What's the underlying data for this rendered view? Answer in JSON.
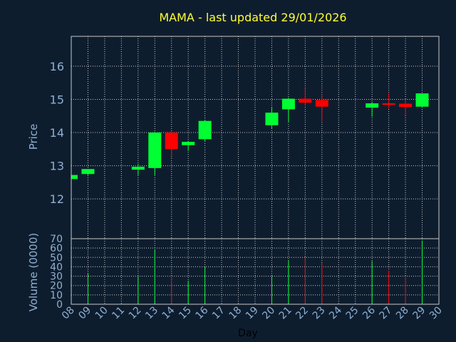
{
  "chart_data": {
    "type": "candlestick",
    "title": "MAMA - last updated 29/01/2026",
    "xlabel": "Day",
    "price_ylabel": "Price",
    "volume_ylabel": "Volume (0000)",
    "price_ylim": [
      10.8,
      16.9
    ],
    "price_ticks": [
      "12",
      "13",
      "14",
      "15",
      "16"
    ],
    "volume_ylim": [
      0,
      70
    ],
    "volume_ticks": [
      "0",
      "10",
      "20",
      "30",
      "40",
      "50",
      "60",
      "70"
    ],
    "x_range": [
      8,
      30
    ],
    "x_ticks": [
      "08",
      "09",
      "10",
      "11",
      "12",
      "13",
      "14",
      "15",
      "16",
      "17",
      "18",
      "19",
      "20",
      "21",
      "22",
      "23",
      "24",
      "25",
      "26",
      "27",
      "28",
      "29",
      "30"
    ],
    "grid": true,
    "up_color": "#00ff33",
    "down_color": "#ff0000",
    "candles": [
      {
        "day": 8,
        "open": 12.6,
        "high": 12.72,
        "low": 12.6,
        "close": 12.72,
        "volume": 0
      },
      {
        "day": 9,
        "open": 12.75,
        "high": 12.9,
        "low": 12.72,
        "close": 12.9,
        "volume": 33
      },
      {
        "day": 12,
        "open": 12.88,
        "high": 13.05,
        "low": 12.72,
        "close": 12.97,
        "volume": 30
      },
      {
        "day": 13,
        "open": 12.93,
        "high": 14.02,
        "low": 12.72,
        "close": 14.0,
        "volume": 58
      },
      {
        "day": 14,
        "open": 14.0,
        "high": 14.02,
        "low": 13.22,
        "close": 13.5,
        "volume": 29
      },
      {
        "day": 15,
        "open": 13.62,
        "high": 13.75,
        "low": 13.45,
        "close": 13.72,
        "volume": 25
      },
      {
        "day": 16,
        "open": 13.8,
        "high": 14.38,
        "low": 13.72,
        "close": 14.35,
        "volume": 40
      },
      {
        "day": 20,
        "open": 14.22,
        "high": 14.75,
        "low": 14.12,
        "close": 14.6,
        "volume": 30
      },
      {
        "day": 21,
        "open": 14.7,
        "high": 15.05,
        "low": 14.3,
        "close": 15.02,
        "volume": 47
      },
      {
        "day": 22,
        "open": 15.02,
        "high": 15.32,
        "low": 14.82,
        "close": 14.9,
        "volume": 51
      },
      {
        "day": 23,
        "open": 14.98,
        "high": 15.15,
        "low": 14.35,
        "close": 14.78,
        "volume": 44
      },
      {
        "day": 26,
        "open": 14.75,
        "high": 14.92,
        "low": 14.48,
        "close": 14.88,
        "volume": 46
      },
      {
        "day": 27,
        "open": 14.88,
        "high": 15.18,
        "low": 14.72,
        "close": 14.85,
        "volume": 36
      },
      {
        "day": 28,
        "open": 14.87,
        "high": 15.0,
        "low": 14.52,
        "close": 14.77,
        "volume": 29
      },
      {
        "day": 29,
        "open": 14.78,
        "high": 15.18,
        "low": 14.78,
        "close": 15.18,
        "volume": 68
      }
    ]
  }
}
